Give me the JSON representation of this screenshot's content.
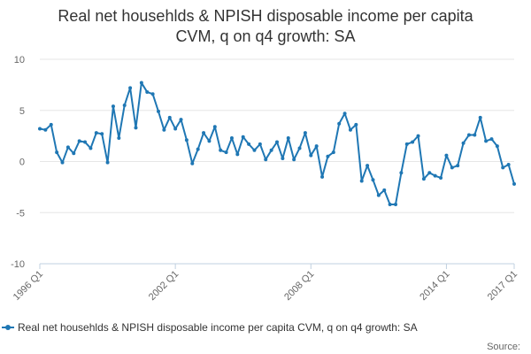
{
  "chart_data": {
    "type": "line",
    "title_lines": [
      "Real net househlds & NPISH disposable income per capita",
      "CVM, q on q4 growth: SA"
    ],
    "xlabel": "",
    "ylabel": "",
    "ylim": [
      -10,
      10
    ],
    "y_ticks": [
      10,
      5,
      0,
      -5,
      -10
    ],
    "x_tick_labels": [
      "1996 Q1",
      "2002 Q1",
      "2008 Q1",
      "2014 Q1",
      "2017 Q1"
    ],
    "x_tick_indices": [
      0,
      24,
      48,
      72,
      84
    ],
    "grid": true,
    "legend_position": "bottom",
    "series": [
      {
        "name": "Real net househlds & NPISH disposable income per capita CVM, q on q4 growth: SA",
        "color": "#1f77b4",
        "values": [
          3.2,
          3.1,
          3.6,
          0.9,
          -0.1,
          1.4,
          0.8,
          2.0,
          1.9,
          1.3,
          2.8,
          2.7,
          -0.1,
          5.4,
          2.3,
          5.5,
          7.2,
          3.3,
          7.7,
          6.8,
          6.6,
          4.9,
          3.1,
          4.3,
          3.2,
          4.1,
          2.1,
          -0.2,
          1.2,
          2.8,
          2.0,
          3.4,
          1.1,
          0.9,
          2.3,
          0.7,
          2.4,
          1.7,
          1.1,
          1.7,
          0.2,
          1.1,
          1.9,
          0.3,
          2.3,
          0.2,
          1.3,
          2.8,
          0.6,
          1.5,
          -1.5,
          0.5,
          0.9,
          3.7,
          4.7,
          3.1,
          3.6,
          -1.9,
          -0.4,
          -1.8,
          -3.3,
          -2.8,
          -4.2,
          -4.2,
          -1.1,
          1.7,
          1.9,
          2.5,
          -1.7,
          -1.1,
          -1.4,
          -1.6,
          0.6,
          -0.6,
          -0.4,
          1.8,
          2.6,
          2.6,
          4.3,
          2.0,
          2.2,
          1.5,
          -0.6,
          -0.3,
          -2.2
        ]
      }
    ]
  },
  "source_label": "Source:"
}
